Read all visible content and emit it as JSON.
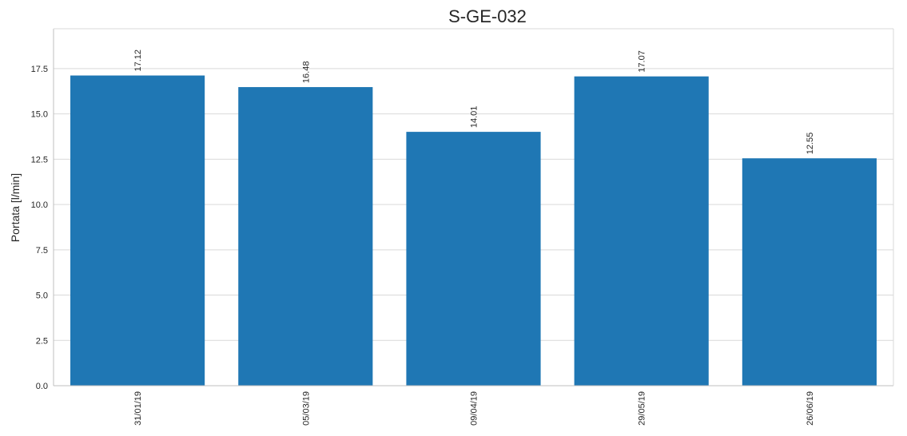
{
  "chart_data": {
    "type": "bar",
    "title": "S-GE-032",
    "xlabel": "",
    "ylabel": "Portata [l/min]",
    "categories": [
      "31/01/19",
      "05/03/19",
      "09/04/19",
      "29/05/19",
      "26/06/19"
    ],
    "values": [
      17.12,
      16.48,
      14.01,
      17.07,
      12.55
    ],
    "data_labels": [
      "17.12",
      "16.48",
      "14.01",
      "17.07",
      "12.55"
    ],
    "ylim": [
      0,
      19.7
    ],
    "yticks": [
      0.0,
      2.5,
      5.0,
      7.5,
      10.0,
      12.5,
      15.0,
      17.5
    ],
    "ytick_labels": [
      "0.0",
      "2.5",
      "5.0",
      "7.5",
      "10.0",
      "12.5",
      "15.0",
      "17.5"
    ],
    "grid": "horizontal",
    "bar_color": "#1f77b4",
    "grid_color": "#d9d9d9",
    "axis_color": "#bfbfbf",
    "text_color": "#262626"
  }
}
